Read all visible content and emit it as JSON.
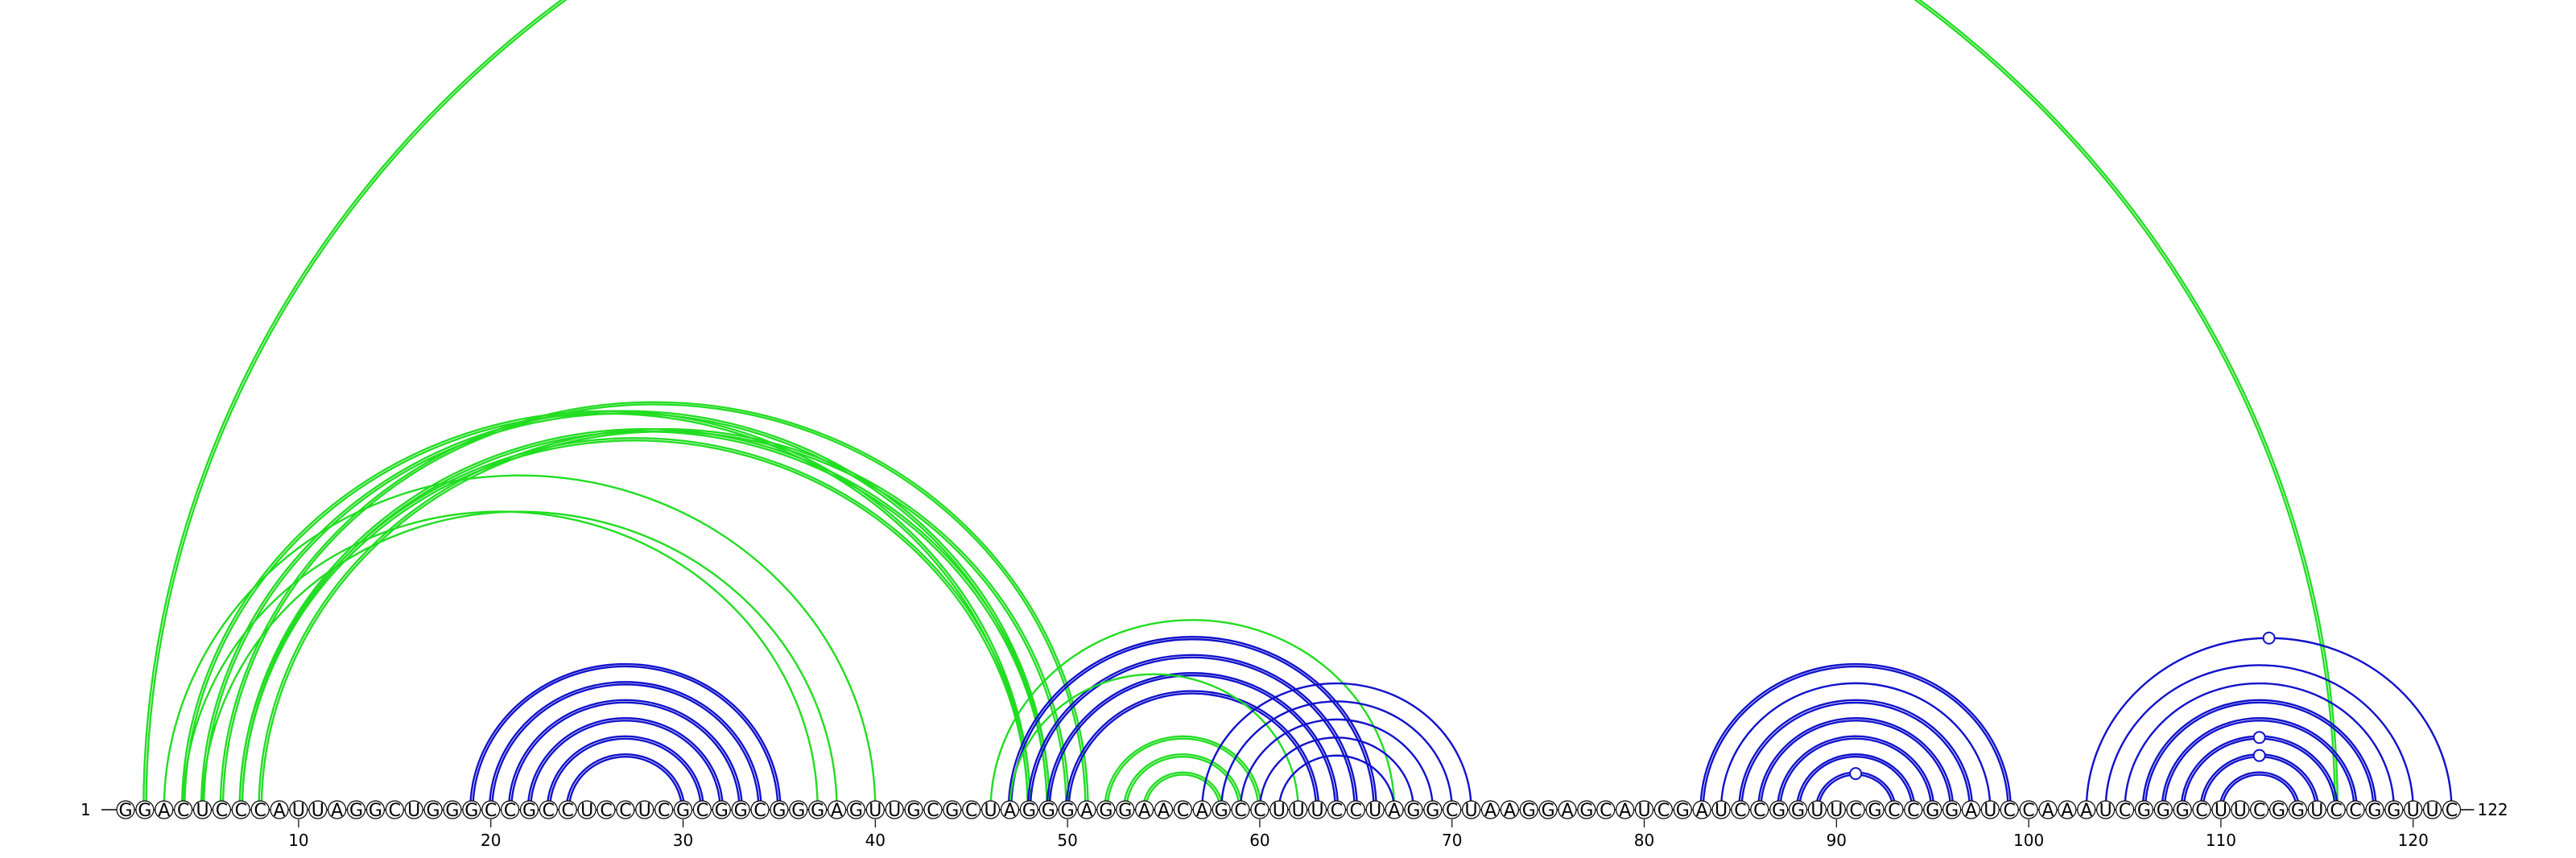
{
  "diagram": {
    "sequence": "GGACUCCCAUUAGGCUGGGCCGCCUCCUCGCGGCGGGAGUUGCGCUAGGGAGGAACAGCCUUUCCUAGGCUAAGGAGCAUCGAUCCGGUUCGCCGGAUCCAAAUCGGGCUUCGGUCCGGUUC",
    "start_label": "1",
    "end_label": "122",
    "ticks": [
      10,
      20,
      30,
      40,
      50,
      60,
      70,
      80,
      90,
      100,
      110,
      120
    ],
    "tick_labels": [
      "10",
      "20",
      "30",
      "40",
      "50",
      "60",
      "70",
      "80",
      "90",
      "100",
      "110",
      "120"
    ],
    "colors": {
      "green": "#22dd22",
      "blue": "#1111cc",
      "backbone": "#000000",
      "node_fill": "#ffffff"
    },
    "arcs": [
      {
        "i": 2,
        "j": 116,
        "color": "green",
        "double": true
      },
      {
        "i": 3,
        "j": 40,
        "color": "green",
        "double": false
      },
      {
        "i": 4,
        "j": 37,
        "color": "green",
        "double": false
      },
      {
        "i": 5,
        "j": 38,
        "color": "green",
        "double": false
      },
      {
        "i": 4,
        "j": 48,
        "color": "green",
        "double": true
      },
      {
        "i": 5,
        "j": 49,
        "color": "green",
        "double": true
      },
      {
        "i": 6,
        "j": 51,
        "color": "green",
        "double": true
      },
      {
        "i": 7,
        "j": 48,
        "color": "green",
        "double": true
      },
      {
        "i": 7,
        "j": 49,
        "color": "green",
        "double": true
      },
      {
        "i": 8,
        "j": 50,
        "color": "green",
        "double": true
      },
      {
        "i": 19,
        "j": 35,
        "color": "blue",
        "double": true
      },
      {
        "i": 20,
        "j": 34,
        "color": "blue",
        "double": true
      },
      {
        "i": 21,
        "j": 33,
        "color": "blue",
        "double": true
      },
      {
        "i": 22,
        "j": 32,
        "color": "blue",
        "double": true
      },
      {
        "i": 23,
        "j": 31,
        "color": "blue",
        "double": true
      },
      {
        "i": 24,
        "j": 30,
        "color": "blue",
        "double": true
      },
      {
        "i": 47,
        "j": 66,
        "color": "blue",
        "double": true
      },
      {
        "i": 48,
        "j": 65,
        "color": "blue",
        "double": true
      },
      {
        "i": 49,
        "j": 64,
        "color": "blue",
        "double": true
      },
      {
        "i": 50,
        "j": 63,
        "color": "blue",
        "double": true
      },
      {
        "i": 46,
        "j": 67,
        "color": "green",
        "double": false
      },
      {
        "i": 47,
        "j": 62,
        "color": "green",
        "double": false
      },
      {
        "i": 52,
        "j": 60,
        "color": "green",
        "double": true
      },
      {
        "i": 53,
        "j": 59,
        "color": "green",
        "double": true
      },
      {
        "i": 54,
        "j": 58,
        "color": "green",
        "double": true
      },
      {
        "i": 57,
        "j": 71,
        "color": "blue",
        "double": false
      },
      {
        "i": 58,
        "j": 70,
        "color": "blue",
        "double": false
      },
      {
        "i": 59,
        "j": 69,
        "color": "blue",
        "double": false
      },
      {
        "i": 60,
        "j": 68,
        "color": "blue",
        "double": false
      },
      {
        "i": 61,
        "j": 67,
        "color": "blue",
        "double": false
      },
      {
        "i": 83,
        "j": 99,
        "color": "blue",
        "double": true
      },
      {
        "i": 84,
        "j": 98,
        "color": "blue",
        "double": false
      },
      {
        "i": 85,
        "j": 97,
        "color": "blue",
        "double": true
      },
      {
        "i": 86,
        "j": 96,
        "color": "blue",
        "double": true
      },
      {
        "i": 87,
        "j": 95,
        "color": "blue",
        "double": true
      },
      {
        "i": 88,
        "j": 94,
        "color": "blue",
        "double": true
      },
      {
        "i": 89,
        "j": 93,
        "color": "blue",
        "double": true
      },
      {
        "i": 103,
        "j": 122,
        "color": "blue",
        "double": false
      },
      {
        "i": 104,
        "j": 120,
        "color": "blue",
        "double": false
      },
      {
        "i": 105,
        "j": 119,
        "color": "blue",
        "double": false
      },
      {
        "i": 106,
        "j": 118,
        "color": "blue",
        "double": true
      },
      {
        "i": 107,
        "j": 117,
        "color": "blue",
        "double": true
      },
      {
        "i": 108,
        "j": 116,
        "color": "blue",
        "double": true
      },
      {
        "i": 109,
        "j": 115,
        "color": "blue",
        "double": true
      },
      {
        "i": 110,
        "j": 114,
        "color": "blue",
        "double": true
      }
    ],
    "arc_markers": [
      {
        "i": 103,
        "j": 122
      },
      {
        "i": 108,
        "j": 116
      },
      {
        "i": 109,
        "j": 115
      },
      {
        "i": 89,
        "j": 93
      }
    ]
  }
}
